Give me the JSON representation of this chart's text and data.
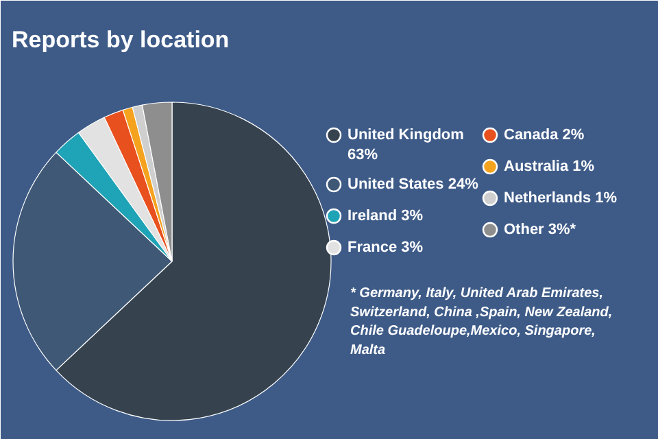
{
  "chart_data": {
    "type": "pie",
    "title": "Reports by location",
    "categories": [
      "United Kingdom",
      "United States",
      "Ireland",
      "France",
      "Canada",
      "Australia",
      "Netherlands",
      "Other"
    ],
    "values": [
      63,
      24,
      3,
      3,
      2,
      1,
      1,
      3
    ],
    "value_labels": [
      "63%",
      "24%",
      "3%",
      "3%",
      "2%",
      "1%",
      "1%",
      "3%*"
    ],
    "colors": [
      "#36434f",
      "#3f5876",
      "#1fa3b6",
      "#e2e2e2",
      "#e8501e",
      "#f5a21e",
      "#cfcfcf",
      "#8e8e8e"
    ],
    "legend": "right",
    "annotations": [
      "* Germany, Italy, United Arab Emirates, Switzerland, China ,Spain, New Zealand, Chile Guadeloupe,Mexico, Singapore, Malta"
    ]
  }
}
